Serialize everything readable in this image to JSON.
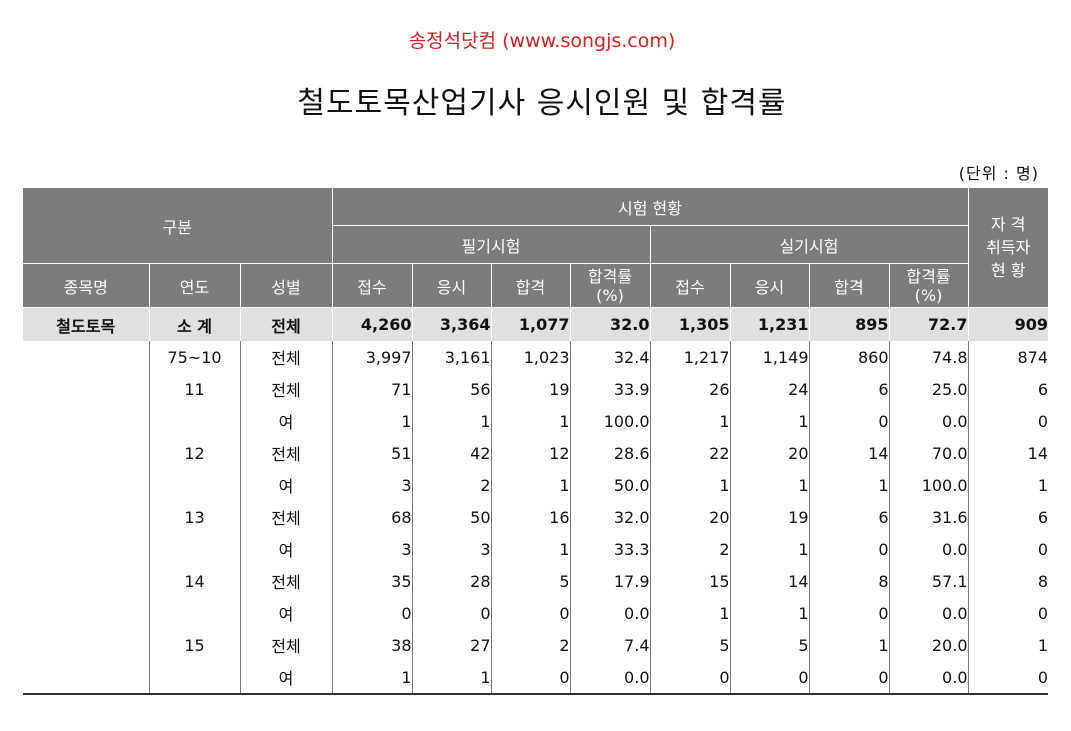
{
  "site": "송정석닷컴 (www.songjs.com)",
  "title": "철도토목산업기사 응시인원 및 합격률",
  "unit": "(단위 : 명)",
  "header": {
    "category": "구분",
    "exam_status": "시험 현황",
    "written": "필기시험",
    "practical": "실기시험",
    "cert_line1": "자 격",
    "cert_line2": "취득자",
    "cert_line3": "현 황",
    "item_name": "종목명",
    "year": "연도",
    "gender": "성별",
    "applied": "접수",
    "taken": "응시",
    "passed": "합격",
    "rate_line1": "합격률",
    "rate_line2": "(%)"
  },
  "summary": {
    "item": "철도토목",
    "year": "소 계",
    "gender": "전체",
    "values": [
      "4,260",
      "3,364",
      "1,077",
      "32.0",
      "1,305",
      "1,231",
      "895",
      "72.7",
      "909"
    ]
  },
  "rows": [
    {
      "year": "75~10",
      "gender": "전체",
      "values": [
        "3,997",
        "3,161",
        "1,023",
        "32.4",
        "1,217",
        "1,149",
        "860",
        "74.8",
        "874"
      ]
    },
    {
      "year": "11",
      "gender": "전체",
      "values": [
        "71",
        "56",
        "19",
        "33.9",
        "26",
        "24",
        "6",
        "25.0",
        "6"
      ]
    },
    {
      "year": "",
      "gender": "여",
      "values": [
        "1",
        "1",
        "1",
        "100.0",
        "1",
        "1",
        "0",
        "0.0",
        "0"
      ]
    },
    {
      "year": "12",
      "gender": "전체",
      "values": [
        "51",
        "42",
        "12",
        "28.6",
        "22",
        "20",
        "14",
        "70.0",
        "14"
      ]
    },
    {
      "year": "",
      "gender": "여",
      "values": [
        "3",
        "2",
        "1",
        "50.0",
        "1",
        "1",
        "1",
        "100.0",
        "1"
      ]
    },
    {
      "year": "13",
      "gender": "전체",
      "values": [
        "68",
        "50",
        "16",
        "32.0",
        "20",
        "19",
        "6",
        "31.6",
        "6"
      ]
    },
    {
      "year": "",
      "gender": "여",
      "values": [
        "3",
        "3",
        "1",
        "33.3",
        "2",
        "1",
        "0",
        "0.0",
        "0"
      ]
    },
    {
      "year": "14",
      "gender": "전체",
      "values": [
        "35",
        "28",
        "5",
        "17.9",
        "15",
        "14",
        "8",
        "57.1",
        "8"
      ]
    },
    {
      "year": "",
      "gender": "여",
      "values": [
        "0",
        "0",
        "0",
        "0.0",
        "1",
        "1",
        "0",
        "0.0",
        "0"
      ]
    },
    {
      "year": "15",
      "gender": "전체",
      "values": [
        "38",
        "27",
        "2",
        "7.4",
        "5",
        "5",
        "1",
        "20.0",
        "1"
      ]
    },
    {
      "year": "",
      "gender": "여",
      "values": [
        "1",
        "1",
        "0",
        "0.0",
        "0",
        "0",
        "0",
        "0.0",
        "0"
      ]
    }
  ]
}
